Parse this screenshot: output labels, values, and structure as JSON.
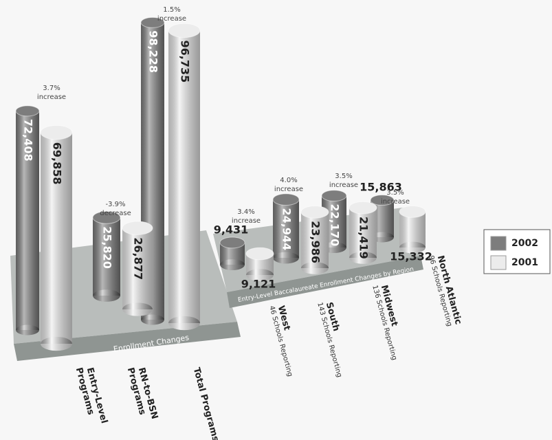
{
  "chart_data": [
    {
      "type": "bar",
      "title": "Enrollment Changes",
      "categories": [
        [
          "Entry-Level",
          "Programs"
        ],
        [
          "RN-to-BSN",
          "Programs"
        ],
        [
          "Total Programs"
        ]
      ],
      "series": [
        {
          "name": "2002",
          "color": "#7d7d7d",
          "values": [
            72408,
            25820,
            98228
          ],
          "value_labels": [
            "72,408",
            "25,820",
            "98,228"
          ]
        },
        {
          "name": "2001",
          "color": "#ececec",
          "values": [
            69858,
            26877,
            96735
          ],
          "value_labels": [
            "69,858",
            "26,877",
            "96,735"
          ]
        }
      ],
      "change_labels": [
        [
          "3.7%",
          "increase"
        ],
        [
          "-3.9%",
          "decrease"
        ],
        [
          "1.5%",
          "increase"
        ]
      ]
    },
    {
      "type": "bar",
      "title": "Entry-Level Baccalaureate Enrollment Changes by Region",
      "categories": [
        "West",
        "South",
        "Midwest",
        "North Atlantic"
      ],
      "category_notes": [
        "46 Schools Reporting",
        "143 Schools Reporting",
        "136 Schools Reporting",
        "96 Schools Reporting"
      ],
      "series": [
        {
          "values": [
            9431,
            24944,
            22170,
            15863
          ],
          "value_labels": [
            "9,431",
            "24,944",
            "22,170",
            "15,863"
          ]
        },
        {
          "values": [
            9121,
            23986,
            21419,
            15332
          ],
          "value_labels": [
            "9,121",
            "23,986",
            "21,419",
            "15,332"
          ]
        }
      ],
      "change_labels": [
        [
          "3.4%",
          "increase"
        ],
        [
          "4.0%",
          "increase"
        ],
        [
          "3.5%",
          "increase"
        ],
        [
          "3.5%",
          "increase"
        ]
      ]
    }
  ]
}
